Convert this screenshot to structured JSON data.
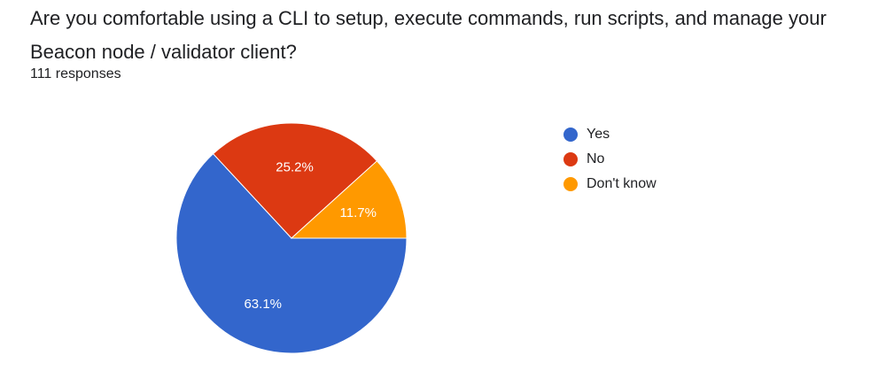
{
  "question": {
    "title": "Are you comfortable using a CLI to setup, execute commands, run scripts, and manage your Beacon node / validator client?",
    "responses": "111 responses"
  },
  "chart_data": {
    "type": "pie",
    "categories": [
      "Yes",
      "No",
      "Don't know"
    ],
    "values": [
      63.1,
      25.2,
      11.7
    ],
    "labels": [
      "63.1%",
      "25.2%",
      "11.7%"
    ],
    "colors": [
      "#3366cc",
      "#dc3912",
      "#ff9900"
    ],
    "legend_position": "right"
  }
}
